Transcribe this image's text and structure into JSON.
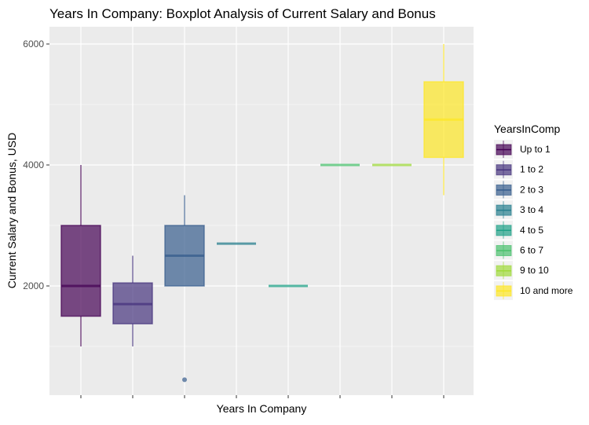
{
  "chart_data": {
    "type": "boxplot",
    "title": "Years In Company: Boxplot Analysis of Current Salary and Bonus",
    "xlabel": "Years In Company",
    "ylabel": "Current Salary and Bonus, USD",
    "ylim": [
      175,
      6300
    ],
    "yticks": [
      2000,
      4000,
      6000
    ],
    "grid": true,
    "legend": {
      "title": "YearsInComp",
      "placement": "right"
    },
    "categories": [
      "Up to 1",
      "1 to 2",
      "2 to 3",
      "3 to 4",
      "4 to 5",
      "6 to 7",
      "9 to 10",
      "10 and more"
    ],
    "colors": [
      "#440154",
      "#46337E",
      "#365C8D",
      "#277F8E",
      "#1FA187",
      "#4AC16D",
      "#9FDA3A",
      "#FDE725"
    ],
    "boxes": [
      {
        "min": 1000,
        "q1": 1500,
        "median": 2000,
        "q3": 3000,
        "max": 4000,
        "outliers": []
      },
      {
        "min": 1000,
        "q1": 1375,
        "median": 1700,
        "q3": 2050,
        "max": 2500,
        "outliers": []
      },
      {
        "min": 2000,
        "q1": 2000,
        "median": 2500,
        "q3": 3000,
        "max": 3500,
        "outliers": [
          450
        ]
      },
      {
        "min": 2700,
        "q1": 2700,
        "median": 2700,
        "q3": 2700,
        "max": 2700,
        "outliers": []
      },
      {
        "min": 2000,
        "q1": 2000,
        "median": 2000,
        "q3": 2000,
        "max": 2000,
        "outliers": []
      },
      {
        "min": 4000,
        "q1": 4000,
        "median": 4000,
        "q3": 4000,
        "max": 4000,
        "outliers": []
      },
      {
        "min": 4000,
        "q1": 4000,
        "median": 4000,
        "q3": 4000,
        "max": 4000,
        "outliers": []
      },
      {
        "min": 3500,
        "q1": 4125,
        "median": 4750,
        "q3": 5375,
        "max": 6000,
        "outliers": []
      }
    ]
  }
}
